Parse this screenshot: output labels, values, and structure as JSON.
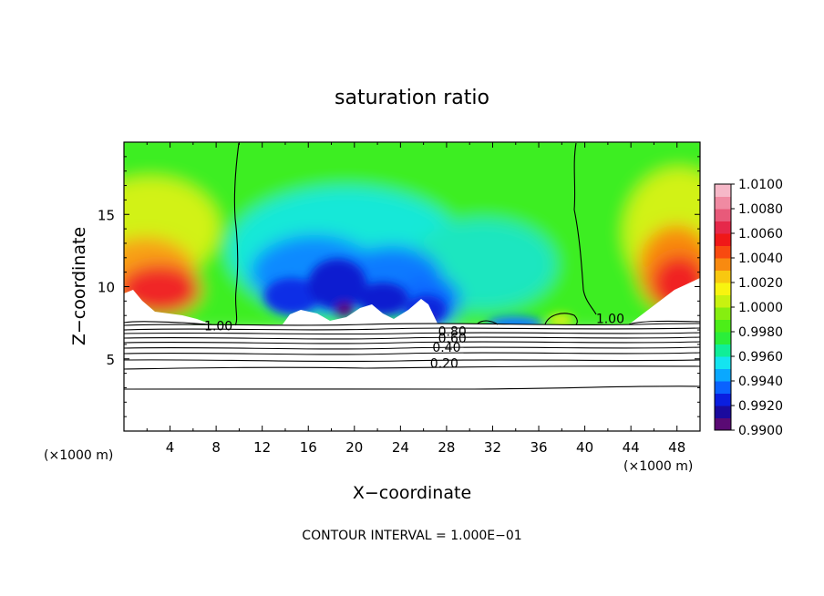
{
  "chart_data": {
    "type": "heatmap",
    "title": "saturation ratio",
    "xlabel": "X−coordinate",
    "ylabel": "Z−coordinate",
    "x_unit_label": "(×1000 m)",
    "y_unit_label": "(×1000 m)",
    "xlim": [
      0,
      50
    ],
    "ylim": [
      0,
      20
    ],
    "xticks": [
      4,
      8,
      12,
      16,
      20,
      24,
      28,
      32,
      36,
      40,
      44,
      48
    ],
    "yticks": [
      5,
      10,
      15
    ],
    "footer": "CONTOUR INTERVAL = 1.000E−01",
    "colorbar": {
      "labels": [
        "1.0100",
        "1.0080",
        "1.0060",
        "1.0040",
        "1.0020",
        "1.0000",
        "0.9980",
        "0.9960",
        "0.9940",
        "0.9920",
        "0.9900"
      ],
      "min": 0.99,
      "max": 1.01,
      "colors": [
        "#5a0a74",
        "#1a0a9e",
        "#0a1ee0",
        "#0a62ff",
        "#0aa8ff",
        "#14e4f0",
        "#10ee98",
        "#2aee3a",
        "#4cee18",
        "#86ee10",
        "#c8f210",
        "#f8f410",
        "#f8c810",
        "#f88a10",
        "#f84a10",
        "#f01818",
        "#e6284a",
        "#e85a7a",
        "#f08aa2",
        "#f6b8c8"
      ]
    },
    "contour_labels": [
      {
        "text": "0.80",
        "x": 28.5,
        "z": 6.9
      },
      {
        "text": "0.60",
        "x": 28.5,
        "z": 6.45
      },
      {
        "text": "0.40",
        "x": 28.0,
        "z": 5.8
      },
      {
        "text": "0.20",
        "x": 27.8,
        "z": 4.7
      },
      {
        "text": "1.00",
        "x": 8.2,
        "z": 7.3
      },
      {
        "text": "1.00",
        "x": 42.2,
        "z": 7.8
      }
    ],
    "contour_levels_below_cloud": [
      6.95,
      6.6,
      6.25,
      5.9,
      5.55,
      5.2,
      4.9,
      4.55,
      3.0
    ]
  }
}
